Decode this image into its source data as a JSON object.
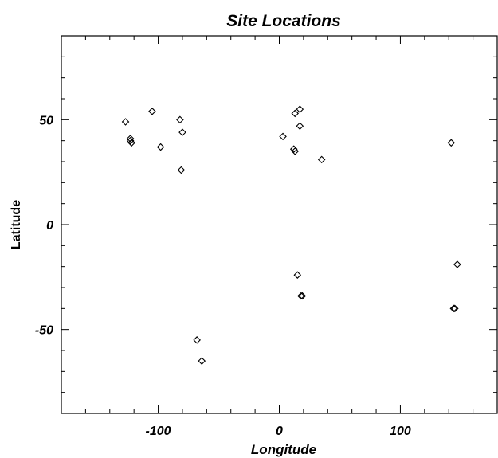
{
  "chart_data": {
    "type": "scatter",
    "title": "Site Locations",
    "xlabel": "Longitude",
    "ylabel": "Latitude",
    "xlim": [
      -180,
      180
    ],
    "ylim": [
      -90,
      90
    ],
    "xticks": [
      -100,
      0,
      100
    ],
    "xtick_labels": [
      "-100",
      "0",
      "100"
    ],
    "yticks": [
      -50,
      0,
      50
    ],
    "ytick_labels": [
      "-50",
      "0",
      "50"
    ],
    "grid": false,
    "marker": "diamond",
    "points": [
      {
        "x": -127,
        "y": 49
      },
      {
        "x": -123,
        "y": 41
      },
      {
        "x": -123,
        "y": 40
      },
      {
        "x": -122,
        "y": 39
      },
      {
        "x": -105,
        "y": 54
      },
      {
        "x": -98,
        "y": 37
      },
      {
        "x": -82,
        "y": 50
      },
      {
        "x": -80,
        "y": 44
      },
      {
        "x": -81,
        "y": 26
      },
      {
        "x": -68,
        "y": -55
      },
      {
        "x": -64,
        "y": -65
      },
      {
        "x": 3,
        "y": 42
      },
      {
        "x": 12,
        "y": 36
      },
      {
        "x": 13,
        "y": 35
      },
      {
        "x": 13,
        "y": 53
      },
      {
        "x": 17,
        "y": 55
      },
      {
        "x": 17,
        "y": 47
      },
      {
        "x": 35,
        "y": 31
      },
      {
        "x": 15,
        "y": -24
      },
      {
        "x": 18,
        "y": -34
      },
      {
        "x": 19,
        "y": -34
      },
      {
        "x": 142,
        "y": 39
      },
      {
        "x": 147,
        "y": -19
      },
      {
        "x": 144,
        "y": -40
      },
      {
        "x": 145,
        "y": -40
      }
    ]
  }
}
